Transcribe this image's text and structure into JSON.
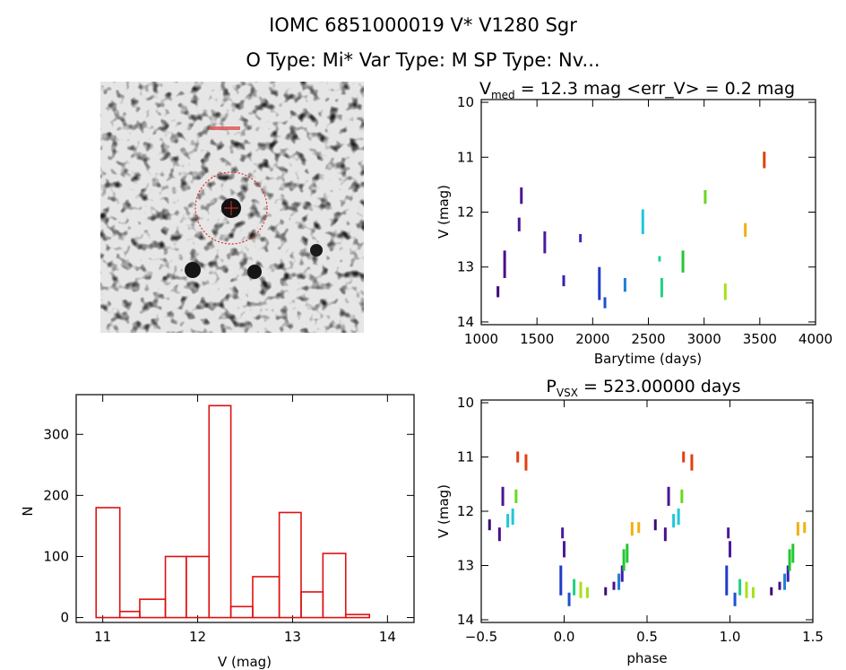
{
  "header": {
    "title_line1": "IOMC 6851000019    V* V1280 Sgr",
    "title_line2": "O Type: Mi*  Var Type: M   SP Type: Nv..."
  },
  "image_panel": {
    "label": "Sky image cutout with red circle marking the target"
  },
  "chart_data": [
    {
      "type": "scatter",
      "title": "V_med = 12.3 mag <err_V> = 0.2 mag",
      "title_parts": {
        "a": "V",
        "sub": "med",
        "b": " = 12.3 mag <err_V> = 0.2 mag"
      },
      "xlabel": "Barytime (days)",
      "ylabel": "V (mag)",
      "xlim": [
        1000,
        4000
      ],
      "ylim": [
        14.05,
        9.95
      ],
      "xticks": [
        1000,
        1500,
        2000,
        2500,
        3000,
        3500,
        4000
      ],
      "yticks": [
        10,
        11,
        12,
        13,
        14
      ],
      "clusters": [
        {
          "x": 1150,
          "y0": 13.55,
          "y1": 13.35,
          "color": "#3d0a7a"
        },
        {
          "x": 1210,
          "y0": 13.2,
          "y1": 12.7,
          "color": "#4a0f8a"
        },
        {
          "x": 1340,
          "y0": 12.35,
          "y1": 12.1,
          "color": "#4b1590"
        },
        {
          "x": 1360,
          "y0": 11.85,
          "y1": 11.55,
          "color": "#4b1590"
        },
        {
          "x": 1570,
          "y0": 12.75,
          "y1": 12.35,
          "color": "#4a1aa0"
        },
        {
          "x": 1740,
          "y0": 13.35,
          "y1": 13.15,
          "color": "#3b20b0"
        },
        {
          "x": 1890,
          "y0": 12.55,
          "y1": 12.4,
          "color": "#3a2ab8"
        },
        {
          "x": 2060,
          "y0": 13.6,
          "y1": 13.0,
          "color": "#1f3cc8"
        },
        {
          "x": 2110,
          "y0": 13.75,
          "y1": 13.55,
          "color": "#1f4fd0"
        },
        {
          "x": 2290,
          "y0": 13.45,
          "y1": 13.2,
          "color": "#1f7fd8"
        },
        {
          "x": 2450,
          "y0": 12.4,
          "y1": 11.95,
          "color": "#1fc8d8"
        },
        {
          "x": 2600,
          "y0": 12.9,
          "y1": 12.8,
          "color": "#20d0a0"
        },
        {
          "x": 2620,
          "y0": 13.55,
          "y1": 13.2,
          "color": "#20d080"
        },
        {
          "x": 2810,
          "y0": 13.1,
          "y1": 12.7,
          "color": "#22c830"
        },
        {
          "x": 3010,
          "y0": 11.85,
          "y1": 11.6,
          "color": "#6ad81e"
        },
        {
          "x": 3190,
          "y0": 13.6,
          "y1": 13.3,
          "color": "#a8e01a"
        },
        {
          "x": 3370,
          "y0": 12.45,
          "y1": 12.2,
          "color": "#f0b010"
        },
        {
          "x": 3540,
          "y0": 11.2,
          "y1": 10.9,
          "color": "#e04010"
        }
      ]
    },
    {
      "type": "bar",
      "title": "",
      "xlabel": "V (mag)",
      "ylabel": "N",
      "xlim": [
        10.72,
        14.28
      ],
      "ylim": [
        -8,
        365
      ],
      "xticks": [
        11,
        12,
        13,
        14
      ],
      "yticks": [
        0,
        100,
        200,
        300
      ],
      "bin_edges": [
        10.93,
        11.18,
        11.39,
        11.66,
        11.88,
        12.12,
        12.35,
        12.58,
        12.86,
        13.09,
        13.32,
        13.56,
        13.81
      ],
      "values": [
        180,
        10,
        30,
        100,
        100,
        347,
        18,
        67,
        172,
        42,
        105,
        5
      ],
      "bar_color": "#dd1111"
    },
    {
      "type": "scatter",
      "title": "P_vsx = 523.00000 days",
      "title_parts": {
        "a": "P",
        "sub": "VSX",
        "b": " = 523.00000 days"
      },
      "xlabel": "phase",
      "ylabel": "V (mag)",
      "xlim": [
        -0.5,
        1.5
      ],
      "ylim": [
        14.05,
        9.95
      ],
      "xticks": [
        -0.5,
        0.0,
        0.5,
        1.0,
        1.5
      ],
      "xtick_labels": [
        "−0.5",
        "0.0",
        "0.5",
        "1.0",
        "1.5"
      ],
      "yticks": [
        10,
        11,
        12,
        13,
        14
      ],
      "clusters": [
        {
          "x": -0.45,
          "y0": 12.35,
          "y1": 12.15,
          "color": "#3d0a7a"
        },
        {
          "x": -0.39,
          "y0": 12.55,
          "y1": 12.3,
          "color": "#4a0f8a"
        },
        {
          "x": -0.37,
          "y0": 11.9,
          "y1": 11.55,
          "color": "#4b1590"
        },
        {
          "x": -0.34,
          "y0": 12.3,
          "y1": 12.05,
          "color": "#1fc8d8"
        },
        {
          "x": -0.31,
          "y0": 12.25,
          "y1": 11.95,
          "color": "#1fc8d8"
        },
        {
          "x": -0.28,
          "y0": 11.1,
          "y1": 10.9,
          "color": "#e04010"
        },
        {
          "x": -0.29,
          "y0": 11.85,
          "y1": 11.6,
          "color": "#6ad81e"
        },
        {
          "x": -0.23,
          "y0": 11.25,
          "y1": 10.95,
          "color": "#e04010"
        },
        {
          "x": -0.02,
          "y0": 13.55,
          "y1": 13.0,
          "color": "#1f3cc8"
        },
        {
          "x": -0.01,
          "y0": 12.5,
          "y1": 12.3,
          "color": "#4a1aa0"
        },
        {
          "x": 0.0,
          "y0": 12.85,
          "y1": 12.55,
          "color": "#4a1aa0"
        },
        {
          "x": 0.03,
          "y0": 13.75,
          "y1": 13.5,
          "color": "#1f4fd0"
        },
        {
          "x": 0.06,
          "y0": 13.55,
          "y1": 13.25,
          "color": "#20d080"
        },
        {
          "x": 0.1,
          "y0": 13.6,
          "y1": 13.3,
          "color": "#a8e01a"
        },
        {
          "x": 0.14,
          "y0": 13.6,
          "y1": 13.4,
          "color": "#a8e01a"
        },
        {
          "x": 0.25,
          "y0": 13.55,
          "y1": 13.4,
          "color": "#3d0a7a"
        },
        {
          "x": 0.3,
          "y0": 13.45,
          "y1": 13.3,
          "color": "#4a0f8a"
        },
        {
          "x": 0.33,
          "y0": 13.45,
          "y1": 13.15,
          "color": "#1f7fd8"
        },
        {
          "x": 0.35,
          "y0": 13.3,
          "y1": 13.0,
          "color": "#3b20b0"
        },
        {
          "x": 0.36,
          "y0": 13.1,
          "y1": 12.7,
          "color": "#22c830"
        },
        {
          "x": 0.38,
          "y0": 12.95,
          "y1": 12.6,
          "color": "#22c830"
        },
        {
          "x": 0.41,
          "y0": 12.45,
          "y1": 12.2,
          "color": "#f0b010"
        },
        {
          "x": 0.45,
          "y0": 12.4,
          "y1": 12.2,
          "color": "#f0b010"
        },
        {
          "x": 0.55,
          "y0": 12.35,
          "y1": 12.15,
          "color": "#3d0a7a"
        },
        {
          "x": 0.61,
          "y0": 12.55,
          "y1": 12.3,
          "color": "#4a0f8a"
        },
        {
          "x": 0.63,
          "y0": 11.9,
          "y1": 11.55,
          "color": "#4b1590"
        },
        {
          "x": 0.66,
          "y0": 12.3,
          "y1": 12.05,
          "color": "#1fc8d8"
        },
        {
          "x": 0.69,
          "y0": 12.25,
          "y1": 11.95,
          "color": "#1fc8d8"
        },
        {
          "x": 0.72,
          "y0": 11.1,
          "y1": 10.9,
          "color": "#e04010"
        },
        {
          "x": 0.71,
          "y0": 11.85,
          "y1": 11.6,
          "color": "#6ad81e"
        },
        {
          "x": 0.77,
          "y0": 11.25,
          "y1": 10.95,
          "color": "#e04010"
        },
        {
          "x": 0.98,
          "y0": 13.55,
          "y1": 13.0,
          "color": "#1f3cc8"
        },
        {
          "x": 0.99,
          "y0": 12.5,
          "y1": 12.3,
          "color": "#4a1aa0"
        },
        {
          "x": 1.0,
          "y0": 12.85,
          "y1": 12.55,
          "color": "#4a1aa0"
        },
        {
          "x": 1.03,
          "y0": 13.75,
          "y1": 13.5,
          "color": "#1f4fd0"
        },
        {
          "x": 1.06,
          "y0": 13.55,
          "y1": 13.25,
          "color": "#20d080"
        },
        {
          "x": 1.1,
          "y0": 13.6,
          "y1": 13.3,
          "color": "#a8e01a"
        },
        {
          "x": 1.14,
          "y0": 13.6,
          "y1": 13.4,
          "color": "#a8e01a"
        },
        {
          "x": 1.25,
          "y0": 13.55,
          "y1": 13.4,
          "color": "#3d0a7a"
        },
        {
          "x": 1.3,
          "y0": 13.45,
          "y1": 13.3,
          "color": "#4a0f8a"
        },
        {
          "x": 1.33,
          "y0": 13.45,
          "y1": 13.15,
          "color": "#1f7fd8"
        },
        {
          "x": 1.35,
          "y0": 13.3,
          "y1": 13.0,
          "color": "#3b20b0"
        },
        {
          "x": 1.36,
          "y0": 13.1,
          "y1": 12.7,
          "color": "#22c830"
        },
        {
          "x": 1.38,
          "y0": 12.95,
          "y1": 12.6,
          "color": "#22c830"
        },
        {
          "x": 1.41,
          "y0": 12.45,
          "y1": 12.2,
          "color": "#f0b010"
        },
        {
          "x": 1.45,
          "y0": 12.4,
          "y1": 12.2,
          "color": "#f0b010"
        }
      ]
    }
  ]
}
